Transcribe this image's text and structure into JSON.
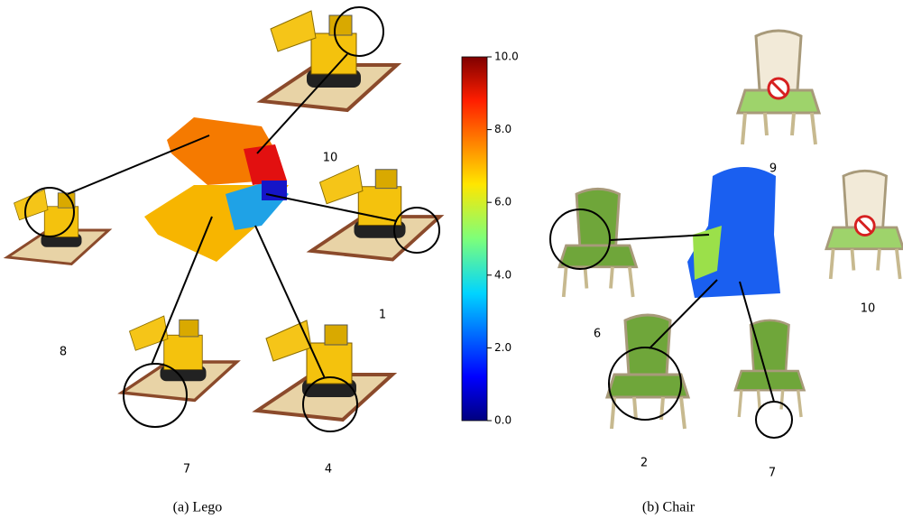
{
  "figure": {
    "colorbar": {
      "lim": [
        0,
        10
      ],
      "ticks": [
        {
          "value": 0,
          "label": "0.0"
        },
        {
          "value": 2,
          "label": "2.0"
        },
        {
          "value": 4,
          "label": "4.0"
        },
        {
          "value": 6,
          "label": "6.0"
        },
        {
          "value": 8,
          "label": "8.0"
        },
        {
          "value": 10,
          "label": "10.0"
        }
      ]
    },
    "lego": {
      "caption": "(a) Lego",
      "view_labels": [
        "10",
        "1",
        "8",
        "7",
        "4"
      ]
    },
    "chair": {
      "caption": "(b) Chair",
      "view_labels": [
        "9",
        "10",
        "6",
        "2",
        "7"
      ]
    }
  }
}
